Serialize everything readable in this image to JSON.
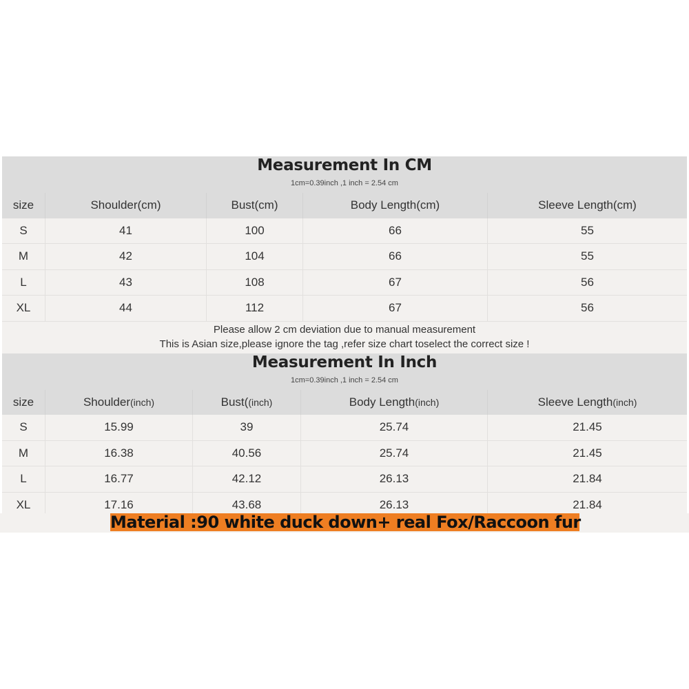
{
  "cm_table": {
    "title": "Measurement In CM",
    "subtitle": "1cm=0.39inch ,1 inch = 2.54 cm",
    "headers": [
      "size",
      "Shoulder(cm)",
      "Bust(cm)",
      "Body Length(cm)",
      "Sleeve Length(cm)"
    ],
    "rows": [
      [
        "S",
        "41",
        "100",
        "66",
        "55"
      ],
      [
        "M",
        "42",
        "104",
        "66",
        "55"
      ],
      [
        "L",
        "43",
        "108",
        "67",
        "56"
      ],
      [
        "XL",
        "44",
        "112",
        "67",
        "56"
      ]
    ]
  },
  "notes": [
    "Please allow 2 cm deviation due to manual measurement",
    "This is Asian size,please ignore the tag ,refer size chart toselect the correct size !"
  ],
  "inch_table": {
    "title": "Measurement In Inch",
    "subtitle": "1cm=0.39inch ,1 inch = 2.54 cm",
    "headers": [
      [
        "size",
        ""
      ],
      [
        "Shoulder",
        "(inch)"
      ],
      [
        "Bust(",
        "(inch)"
      ],
      [
        "Body Length",
        "(inch)"
      ],
      [
        "Sleeve Length",
        "(inch)"
      ]
    ],
    "rows": [
      [
        "S",
        "15.99",
        "39",
        "25.74",
        "21.45"
      ],
      [
        "M",
        "16.38",
        "40.56",
        "25.74",
        "21.45"
      ],
      [
        "L",
        "16.77",
        "42.12",
        "26.13",
        "21.84"
      ],
      [
        "XL",
        "17.16",
        "43.68",
        "26.13",
        "21.84"
      ]
    ]
  },
  "material": "Material :90 white duck down+ real Fox/Raccoon fur",
  "colors": {
    "header_bg": "#dcdcdc",
    "row_bg": "#f3f1ef",
    "material_bg": "#ee7e22"
  }
}
